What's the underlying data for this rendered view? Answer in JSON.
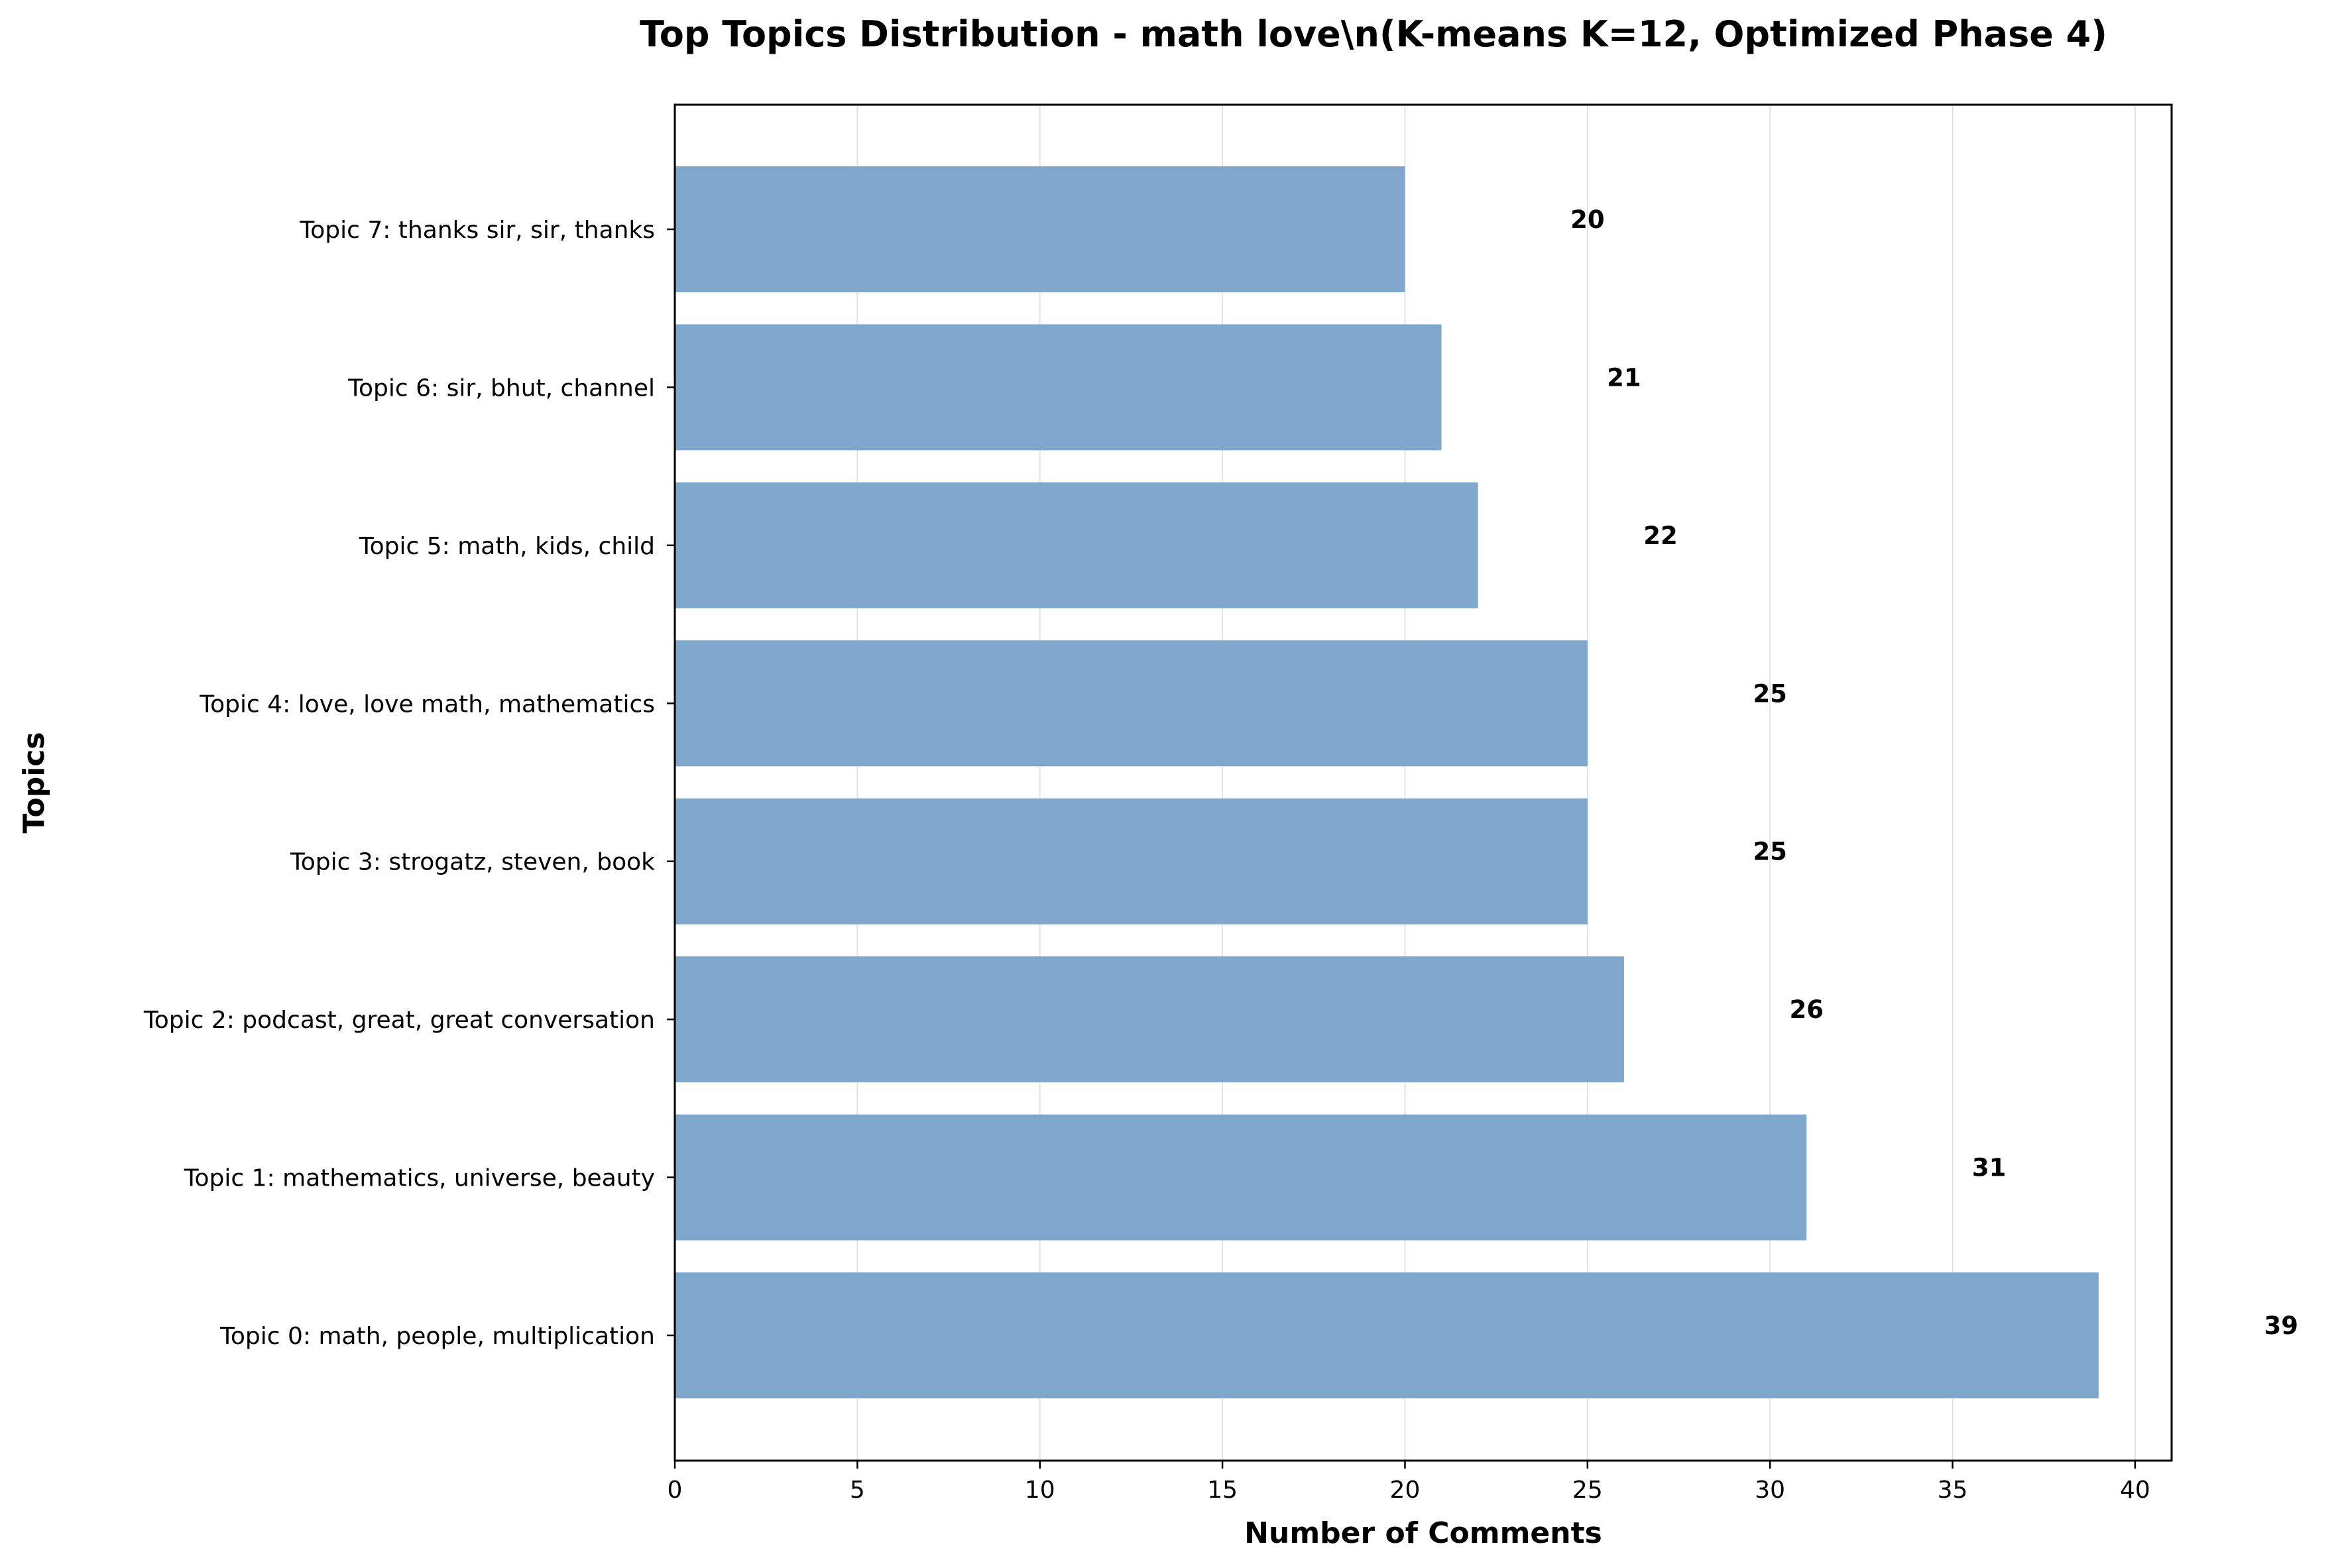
{
  "chart_data": {
    "type": "bar",
    "orientation": "horizontal",
    "title": "Top Topics Distribution - math love\\n(K-means K=12, Optimized Phase 4)",
    "xlabel": "Number of Comments",
    "ylabel": "Topics",
    "xlim": [
      0,
      41
    ],
    "xticks": [
      0,
      5,
      10,
      15,
      20,
      25,
      30,
      35,
      40
    ],
    "grid": "x",
    "bar_color": "#7ea7cb",
    "categories": [
      "Topic 0: math, people, multiplication",
      "Topic 1: mathematics, universe, beauty",
      "Topic 2: podcast, great, great conversation",
      "Topic 3: strogatz, steven, book",
      "Topic 4: love, love math, mathematics",
      "Topic 5: math, kids, child",
      "Topic 6: sir, bhut, channel",
      "Topic 7: thanks sir, sir, thanks"
    ],
    "values": [
      39,
      31,
      26,
      25,
      25,
      22,
      21,
      20
    ],
    "data_labels": [
      "39",
      "31",
      "26",
      "25",
      "25",
      "22",
      "21",
      "20"
    ]
  }
}
